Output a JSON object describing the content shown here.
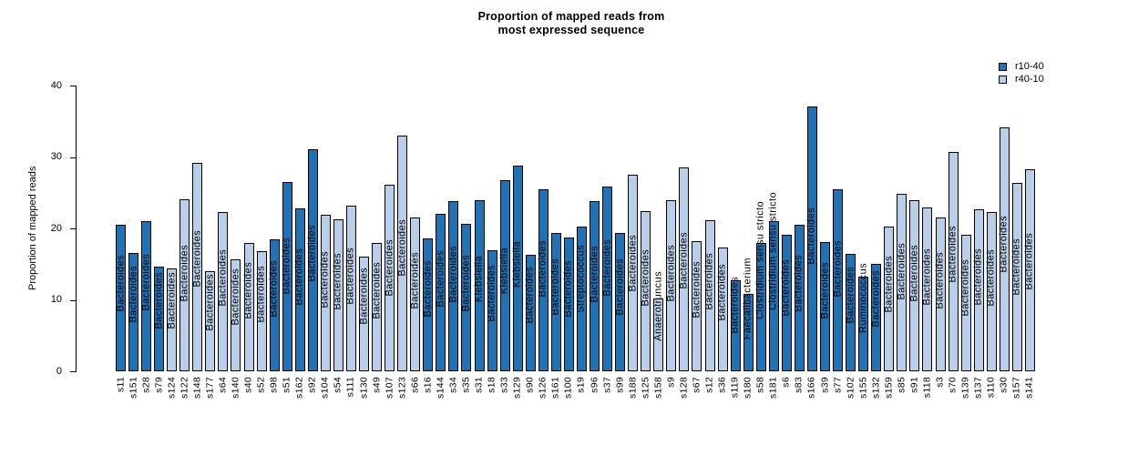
{
  "chart": {
    "title_line1": "Proportion of mapped reads from",
    "title_line2": "most expressed sequence",
    "ylabel": "Proportion of mapped reads",
    "legend": [
      {
        "label": "r10-40",
        "color": "#2171B5"
      },
      {
        "label": "r40-10",
        "color": "#B9CEE9"
      }
    ]
  },
  "chart_data": {
    "type": "bar",
    "title": "Proportion of mapped reads from most expressed sequence",
    "xlabel": "",
    "ylabel": "Proportion of mapped reads",
    "ylim": [
      0,
      40
    ],
    "yticks": [
      0,
      10,
      20,
      30,
      40
    ],
    "grid": false,
    "legend_position": "top-right",
    "groups": {
      "r10-40": "#2171B5",
      "r40-10": "#B9CEE9"
    },
    "bar_outline_color": "#000000",
    "bars": [
      {
        "id": "s11",
        "value": 20.5,
        "group": "r10-40",
        "taxon": "Bacteroides"
      },
      {
        "id": "s151",
        "value": 16.6,
        "group": "r10-40",
        "taxon": "Bacteroides"
      },
      {
        "id": "s28",
        "value": 21.0,
        "group": "r10-40",
        "taxon": "Bacteroides"
      },
      {
        "id": "s79",
        "value": 14.6,
        "group": "r10-40",
        "taxon": "Bacteroides"
      },
      {
        "id": "s124",
        "value": 14.4,
        "group": "r40-10",
        "taxon": "Bacteroides"
      },
      {
        "id": "s122",
        "value": 24.1,
        "group": "r40-10",
        "taxon": "Bacteroides"
      },
      {
        "id": "s148",
        "value": 29.2,
        "group": "r40-10",
        "taxon": "Bacteroides"
      },
      {
        "id": "s177",
        "value": 14.0,
        "group": "r40-10",
        "taxon": "Bacteroides"
      },
      {
        "id": "s64",
        "value": 22.3,
        "group": "r40-10",
        "taxon": "Bacteroides"
      },
      {
        "id": "s140",
        "value": 15.7,
        "group": "r40-10",
        "taxon": "Bacteroides"
      },
      {
        "id": "s40",
        "value": 17.9,
        "group": "r40-10",
        "taxon": "Bacteroides"
      },
      {
        "id": "s52",
        "value": 16.8,
        "group": "r40-10",
        "taxon": "Bacteroides"
      },
      {
        "id": "s98",
        "value": 18.5,
        "group": "r10-40",
        "taxon": "Bacteroides"
      },
      {
        "id": "s51",
        "value": 26.5,
        "group": "r10-40",
        "taxon": "Bacteroides"
      },
      {
        "id": "s162",
        "value": 22.8,
        "group": "r10-40",
        "taxon": "Bacteroides"
      },
      {
        "id": "s92",
        "value": 31.1,
        "group": "r10-40",
        "taxon": "Bacteroides"
      },
      {
        "id": "s104",
        "value": 21.9,
        "group": "r40-10",
        "taxon": "Bacteroides"
      },
      {
        "id": "s54",
        "value": 21.3,
        "group": "r40-10",
        "taxon": "Bacteroides"
      },
      {
        "id": "s111",
        "value": 23.2,
        "group": "r40-10",
        "taxon": "Bacteroides"
      },
      {
        "id": "s130",
        "value": 16.1,
        "group": "r40-10",
        "taxon": "Bacteroides"
      },
      {
        "id": "s49",
        "value": 18.0,
        "group": "r40-10",
        "taxon": "Bacteroides"
      },
      {
        "id": "s107",
        "value": 26.1,
        "group": "r40-10",
        "taxon": "Bacteroides"
      },
      {
        "id": "s123",
        "value": 33.0,
        "group": "r40-10",
        "taxon": "Bacteroides"
      },
      {
        "id": "s66",
        "value": 21.5,
        "group": "r40-10",
        "taxon": "Bacteroides"
      },
      {
        "id": "s16",
        "value": 18.6,
        "group": "r10-40",
        "taxon": "Bacteroides"
      },
      {
        "id": "s144",
        "value": 22.0,
        "group": "r10-40",
        "taxon": "Bacteroides"
      },
      {
        "id": "s34",
        "value": 23.8,
        "group": "r10-40",
        "taxon": "Bacteroides"
      },
      {
        "id": "s35",
        "value": 20.7,
        "group": "r10-40",
        "taxon": "Bacteroides"
      },
      {
        "id": "s31",
        "value": 23.9,
        "group": "r10-40",
        "taxon": "Klebsiella"
      },
      {
        "id": "s18",
        "value": 17.0,
        "group": "r10-40",
        "taxon": "Bacteroides"
      },
      {
        "id": "s33",
        "value": 26.8,
        "group": "r10-40",
        "taxon": "Klebsiella"
      },
      {
        "id": "s129",
        "value": 28.8,
        "group": "r10-40",
        "taxon": "Klebsiella"
      },
      {
        "id": "s90",
        "value": 16.3,
        "group": "r10-40",
        "taxon": "Bacteroides"
      },
      {
        "id": "s126",
        "value": 25.5,
        "group": "r10-40",
        "taxon": "Bacteroides"
      },
      {
        "id": "s161",
        "value": 19.4,
        "group": "r10-40",
        "taxon": "Bacteroides"
      },
      {
        "id": "s100",
        "value": 18.7,
        "group": "r10-40",
        "taxon": "Bacteroides"
      },
      {
        "id": "s19",
        "value": 20.2,
        "group": "r10-40",
        "taxon": "Streptococcus"
      },
      {
        "id": "s96",
        "value": 23.8,
        "group": "r10-40",
        "taxon": "Bacteroides"
      },
      {
        "id": "s37",
        "value": 25.9,
        "group": "r10-40",
        "taxon": "Bacteroides"
      },
      {
        "id": "s99",
        "value": 19.3,
        "group": "r10-40",
        "taxon": "Bacteroides"
      },
      {
        "id": "s188",
        "value": 27.5,
        "group": "r40-10",
        "taxon": "Bacteroides"
      },
      {
        "id": "s125",
        "value": 22.4,
        "group": "r40-10",
        "taxon": "Bacteroides"
      },
      {
        "id": "s158",
        "value": 10.2,
        "group": "r40-10",
        "taxon": "Anaerotruncus"
      },
      {
        "id": "s9",
        "value": 23.9,
        "group": "r40-10",
        "taxon": "Bacteroides"
      },
      {
        "id": "s128",
        "value": 28.5,
        "group": "r40-10",
        "taxon": "Bacteroides"
      },
      {
        "id": "s67",
        "value": 18.2,
        "group": "r40-10",
        "taxon": "Bacteroides"
      },
      {
        "id": "s12",
        "value": 21.1,
        "group": "r40-10",
        "taxon": "Bacteroides"
      },
      {
        "id": "s36",
        "value": 17.3,
        "group": "r40-10",
        "taxon": "Bacteroides"
      },
      {
        "id": "s119",
        "value": 12.8,
        "group": "r10-40",
        "taxon": "Bacteroides"
      },
      {
        "id": "s180",
        "value": 10.8,
        "group": "r10-40",
        "taxon": "Faecalibacterium"
      },
      {
        "id": "s58",
        "value": 18.0,
        "group": "r10-40",
        "taxon": "Clostridium sensu stricto"
      },
      {
        "id": "s181",
        "value": 21.0,
        "group": "r10-40",
        "taxon": "Clostridium sensu stricto"
      },
      {
        "id": "s6",
        "value": 19.1,
        "group": "r10-40",
        "taxon": "Bacteroides"
      },
      {
        "id": "s83",
        "value": 20.5,
        "group": "r10-40",
        "taxon": "Bacteroides"
      },
      {
        "id": "s166",
        "value": 37.1,
        "group": "r10-40",
        "taxon": "Bacteroides"
      },
      {
        "id": "s39",
        "value": 18.1,
        "group": "r10-40",
        "taxon": "Bacteroides"
      },
      {
        "id": "s77",
        "value": 25.5,
        "group": "r10-40",
        "taxon": "Bacteroides"
      },
      {
        "id": "s102",
        "value": 16.4,
        "group": "r10-40",
        "taxon": "Bacteroides"
      },
      {
        "id": "s155",
        "value": 13.2,
        "group": "r10-40",
        "taxon": "Ruminococcus"
      },
      {
        "id": "s132",
        "value": 15.0,
        "group": "r10-40",
        "taxon": "Bacteroides"
      },
      {
        "id": "s159",
        "value": 20.2,
        "group": "r40-10",
        "taxon": "Bacteroides"
      },
      {
        "id": "s85",
        "value": 24.8,
        "group": "r40-10",
        "taxon": "Bacteroides"
      },
      {
        "id": "s91",
        "value": 23.9,
        "group": "r40-10",
        "taxon": "Bacteroides"
      },
      {
        "id": "s118",
        "value": 22.9,
        "group": "r40-10",
        "taxon": "Bacteroides"
      },
      {
        "id": "s3",
        "value": 21.5,
        "group": "r40-10",
        "taxon": "Bacteroides"
      },
      {
        "id": "s70",
        "value": 30.7,
        "group": "r40-10",
        "taxon": "Bacteroides"
      },
      {
        "id": "s139",
        "value": 19.1,
        "group": "r40-10",
        "taxon": "Bacteroides"
      },
      {
        "id": "s137",
        "value": 22.7,
        "group": "r40-10",
        "taxon": "Bacteroides"
      },
      {
        "id": "s110",
        "value": 22.3,
        "group": "r40-10",
        "taxon": "Bacteroides"
      },
      {
        "id": "s30",
        "value": 34.2,
        "group": "r40-10",
        "taxon": "Bacteroides"
      },
      {
        "id": "s157",
        "value": 26.4,
        "group": "r40-10",
        "taxon": "Bacteroides"
      },
      {
        "id": "s141",
        "value": 28.3,
        "group": "r40-10",
        "taxon": "Bacteroides"
      }
    ]
  }
}
